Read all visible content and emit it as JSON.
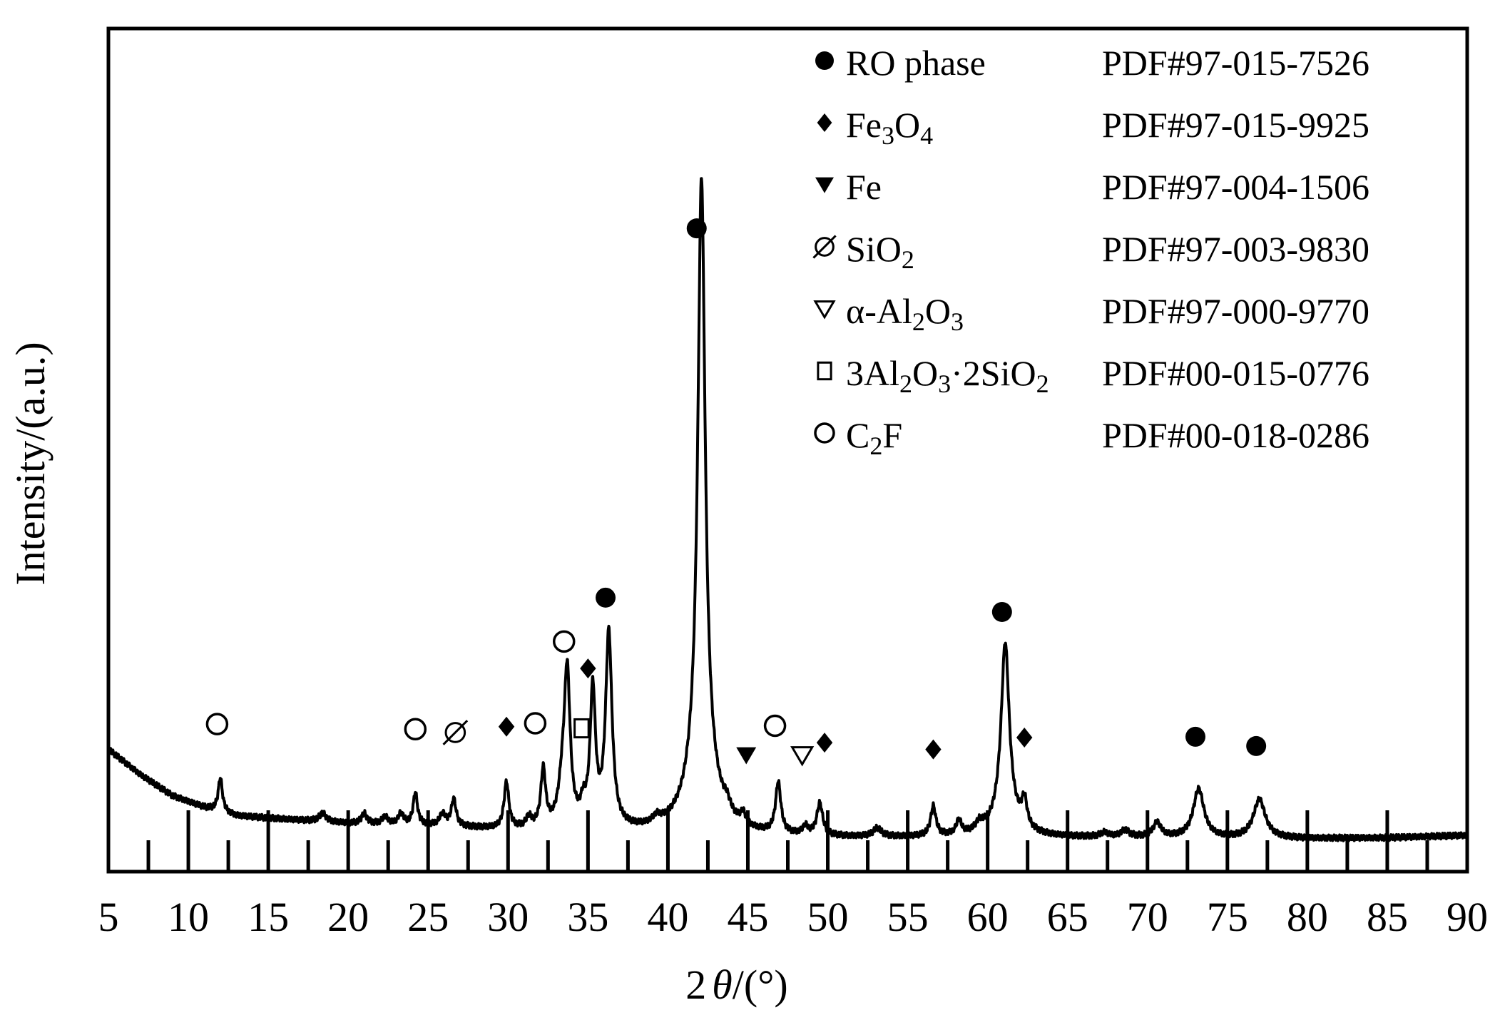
{
  "chart_data": {
    "type": "line",
    "xlabel_parts": [
      "2",
      "θ",
      "/(°)"
    ],
    "ylabel": "Intensity/(a.u.)",
    "xlim": [
      5,
      90
    ],
    "ylim": [
      0,
      100
    ],
    "x_ticks": [
      "5",
      "10",
      "15",
      "20",
      "25",
      "30",
      "35",
      "40",
      "45",
      "50",
      "55",
      "60",
      "65",
      "70",
      "75",
      "80",
      "85",
      "90"
    ],
    "grid": false,
    "legend_position": "top-right",
    "legend": [
      {
        "symbol": "filled-circle",
        "parts": [
          {
            "t": "RO phase"
          }
        ],
        "pdf": "PDF#97-015-7526"
      },
      {
        "symbol": "filled-diamond",
        "parts": [
          {
            "t": "Fe"
          },
          {
            "t": "3",
            "sub": true
          },
          {
            "t": "O"
          },
          {
            "t": "4",
            "sub": true
          }
        ],
        "pdf": "PDF#97-015-9925"
      },
      {
        "symbol": "filled-triangle-down",
        "parts": [
          {
            "t": "Fe"
          }
        ],
        "pdf": "PDF#97-004-1506"
      },
      {
        "symbol": "slashed-circle",
        "parts": [
          {
            "t": "SiO"
          },
          {
            "t": "2",
            "sub": true
          }
        ],
        "pdf": "PDF#97-003-9830"
      },
      {
        "symbol": "open-triangle-down",
        "parts": [
          {
            "t": "α-Al"
          },
          {
            "t": "2",
            "sub": true
          },
          {
            "t": "O"
          },
          {
            "t": "3",
            "sub": true
          }
        ],
        "pdf": "PDF#97-000-9770"
      },
      {
        "symbol": "open-square",
        "parts": [
          {
            "t": "3Al"
          },
          {
            "t": "2",
            "sub": true
          },
          {
            "t": "O"
          },
          {
            "t": "3",
            "sub": true
          },
          {
            "t": "·2SiO"
          },
          {
            "t": "2",
            "sub": true
          }
        ],
        "pdf": "PDF#00-015-0776"
      },
      {
        "symbol": "open-circle",
        "parts": [
          {
            "t": "C"
          },
          {
            "t": "2",
            "sub": true
          },
          {
            "t": "F"
          }
        ],
        "pdf": "PDF#00-018-0286"
      }
    ],
    "series": [
      {
        "baseline": [
          [
            5,
            14.5
          ],
          [
            7,
            11.5
          ],
          [
            9,
            9
          ],
          [
            11,
            7.6
          ],
          [
            13,
            6.6
          ],
          [
            16,
            6.2
          ],
          [
            20,
            5.7
          ],
          [
            25,
            5.4
          ],
          [
            30,
            4.9
          ],
          [
            35,
            4.8
          ],
          [
            40,
            4.4
          ],
          [
            45,
            4.1
          ],
          [
            50,
            4.0
          ],
          [
            55,
            4.0
          ],
          [
            60,
            4.0
          ],
          [
            65,
            4.0
          ],
          [
            70,
            4.0
          ],
          [
            75,
            3.9
          ],
          [
            80,
            3.9
          ],
          [
            85,
            4.0
          ],
          [
            90,
            4.3
          ]
        ],
        "peaks": [
          {
            "x": 12.0,
            "h": 4.0,
            "w": 0.16
          },
          {
            "x": 18.4,
            "h": 1.0,
            "w": 0.25
          },
          {
            "x": 21.0,
            "h": 1.2,
            "w": 0.2
          },
          {
            "x": 22.3,
            "h": 0.9,
            "w": 0.2
          },
          {
            "x": 23.3,
            "h": 1.3,
            "w": 0.2
          },
          {
            "x": 24.2,
            "h": 3.8,
            "w": 0.16
          },
          {
            "x": 25.9,
            "h": 1.4,
            "w": 0.22
          },
          {
            "x": 26.6,
            "h": 3.2,
            "w": 0.18
          },
          {
            "x": 29.9,
            "h": 5.5,
            "w": 0.18
          },
          {
            "x": 31.3,
            "h": 1.2,
            "w": 0.2
          },
          {
            "x": 32.2,
            "h": 6.8,
            "w": 0.18
          },
          {
            "x": 33.4,
            "h": 4.0,
            "w": 0.3
          },
          {
            "x": 33.7,
            "h": 17.5,
            "w": 0.22
          },
          {
            "x": 34.7,
            "h": 2.0,
            "w": 0.2
          },
          {
            "x": 35.3,
            "h": 16.0,
            "w": 0.2
          },
          {
            "x": 36.3,
            "h": 23.0,
            "w": 0.24
          },
          {
            "x": 39.3,
            "h": 0.8,
            "w": 0.3
          },
          {
            "x": 42.1,
            "h": 70.0,
            "w": 0.27
          },
          {
            "x": 42.1,
            "h": 8.0,
            "w": 1.0
          },
          {
            "x": 43.7,
            "h": 1.1,
            "w": 0.25
          },
          {
            "x": 44.7,
            "h": 1.3,
            "w": 0.2
          },
          {
            "x": 46.9,
            "h": 6.0,
            "w": 0.2
          },
          {
            "x": 48.6,
            "h": 1.0,
            "w": 0.2
          },
          {
            "x": 49.5,
            "h": 3.8,
            "w": 0.22
          },
          {
            "x": 53.1,
            "h": 1.0,
            "w": 0.3
          },
          {
            "x": 56.6,
            "h": 3.5,
            "w": 0.2
          },
          {
            "x": 58.2,
            "h": 1.7,
            "w": 0.2
          },
          {
            "x": 59.5,
            "h": 1.0,
            "w": 0.3
          },
          {
            "x": 61.1,
            "h": 20.5,
            "w": 0.3
          },
          {
            "x": 61.1,
            "h": 2.5,
            "w": 0.9
          },
          {
            "x": 62.3,
            "h": 3.2,
            "w": 0.2
          },
          {
            "x": 67.3,
            "h": 0.5,
            "w": 0.3
          },
          {
            "x": 68.6,
            "h": 0.8,
            "w": 0.3
          },
          {
            "x": 70.6,
            "h": 1.7,
            "w": 0.3
          },
          {
            "x": 73.2,
            "h": 5.8,
            "w": 0.4
          },
          {
            "x": 77.0,
            "h": 4.6,
            "w": 0.45
          }
        ]
      }
    ],
    "markers": [
      {
        "symbol": "open-circle",
        "x": 11.8,
        "y": 17.5
      },
      {
        "symbol": "open-circle",
        "x": 24.2,
        "y": 16.9
      },
      {
        "symbol": "slashed-circle",
        "x": 26.7,
        "y": 16.5
      },
      {
        "symbol": "filled-diamond",
        "x": 29.9,
        "y": 17.2
      },
      {
        "symbol": "open-circle",
        "x": 31.7,
        "y": 17.6
      },
      {
        "symbol": "open-square",
        "x": 34.6,
        "y": 17.0
      },
      {
        "symbol": "open-circle",
        "x": 33.5,
        "y": 27.3
      },
      {
        "symbol": "filled-diamond",
        "x": 35.0,
        "y": 24.1
      },
      {
        "symbol": "filled-circle",
        "x": 36.1,
        "y": 32.5
      },
      {
        "symbol": "filled-circle",
        "x": 41.8,
        "y": 76.3
      },
      {
        "symbol": "filled-triangle-down",
        "x": 44.9,
        "y": 13.8
      },
      {
        "symbol": "open-circle",
        "x": 46.7,
        "y": 17.3
      },
      {
        "symbol": "open-triangle-down",
        "x": 48.4,
        "y": 13.8
      },
      {
        "symbol": "filled-diamond",
        "x": 49.8,
        "y": 15.3
      },
      {
        "symbol": "filled-diamond",
        "x": 56.6,
        "y": 14.5
      },
      {
        "symbol": "filled-circle",
        "x": 60.9,
        "y": 30.8
      },
      {
        "symbol": "filled-diamond",
        "x": 62.3,
        "y": 15.9
      },
      {
        "symbol": "filled-circle",
        "x": 73.0,
        "y": 16.0
      },
      {
        "symbol": "filled-circle",
        "x": 76.8,
        "y": 14.9
      }
    ]
  }
}
